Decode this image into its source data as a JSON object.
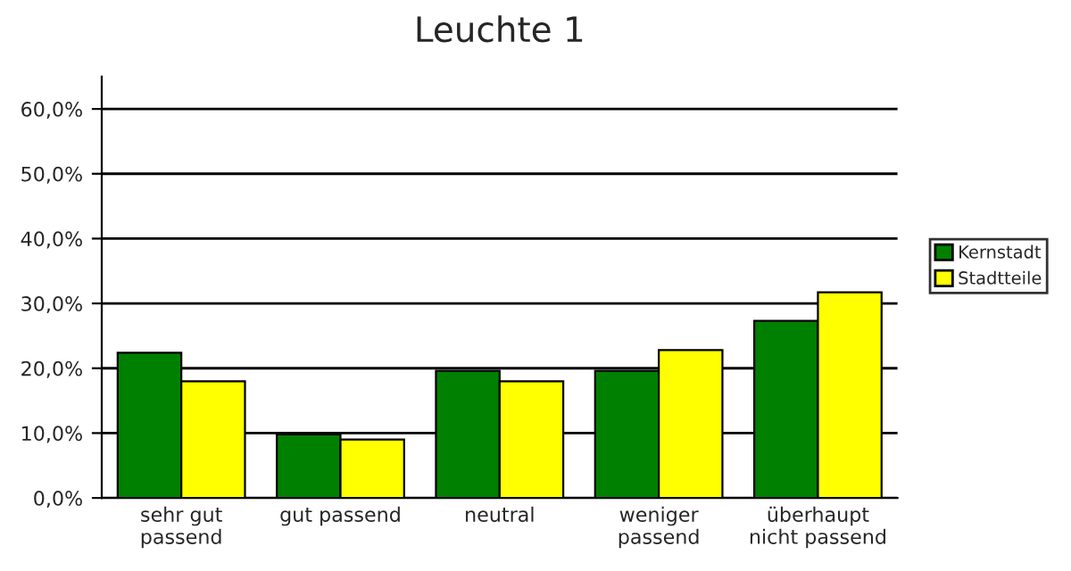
{
  "chart_data": {
    "type": "bar",
    "title": "Leuchte 1",
    "categories": [
      "sehr gut\npassend",
      "gut passend",
      "neutral",
      "weniger\npassend",
      "überhaupt\nnicht passend"
    ],
    "series": [
      {
        "name": "Kernstadt",
        "color": "#008000",
        "values": [
          22.4,
          9.8,
          19.6,
          19.6,
          27.3
        ]
      },
      {
        "name": "Stadtteile",
        "color": "#ffff00",
        "values": [
          18.0,
          9.0,
          18.0,
          22.8,
          31.7
        ]
      }
    ],
    "ylim": [
      0,
      65
    ],
    "yticks": [
      {
        "value": 0,
        "label": "0,0%"
      },
      {
        "value": 10,
        "label": "10,0%"
      },
      {
        "value": 20,
        "label": "20,0%"
      },
      {
        "value": 30,
        "label": "30,0%"
      },
      {
        "value": 40,
        "label": "40,0%"
      },
      {
        "value": 50,
        "label": "50,0%"
      },
      {
        "value": 60,
        "label": "60,0%"
      }
    ],
    "grid": "y",
    "legend": "right"
  }
}
